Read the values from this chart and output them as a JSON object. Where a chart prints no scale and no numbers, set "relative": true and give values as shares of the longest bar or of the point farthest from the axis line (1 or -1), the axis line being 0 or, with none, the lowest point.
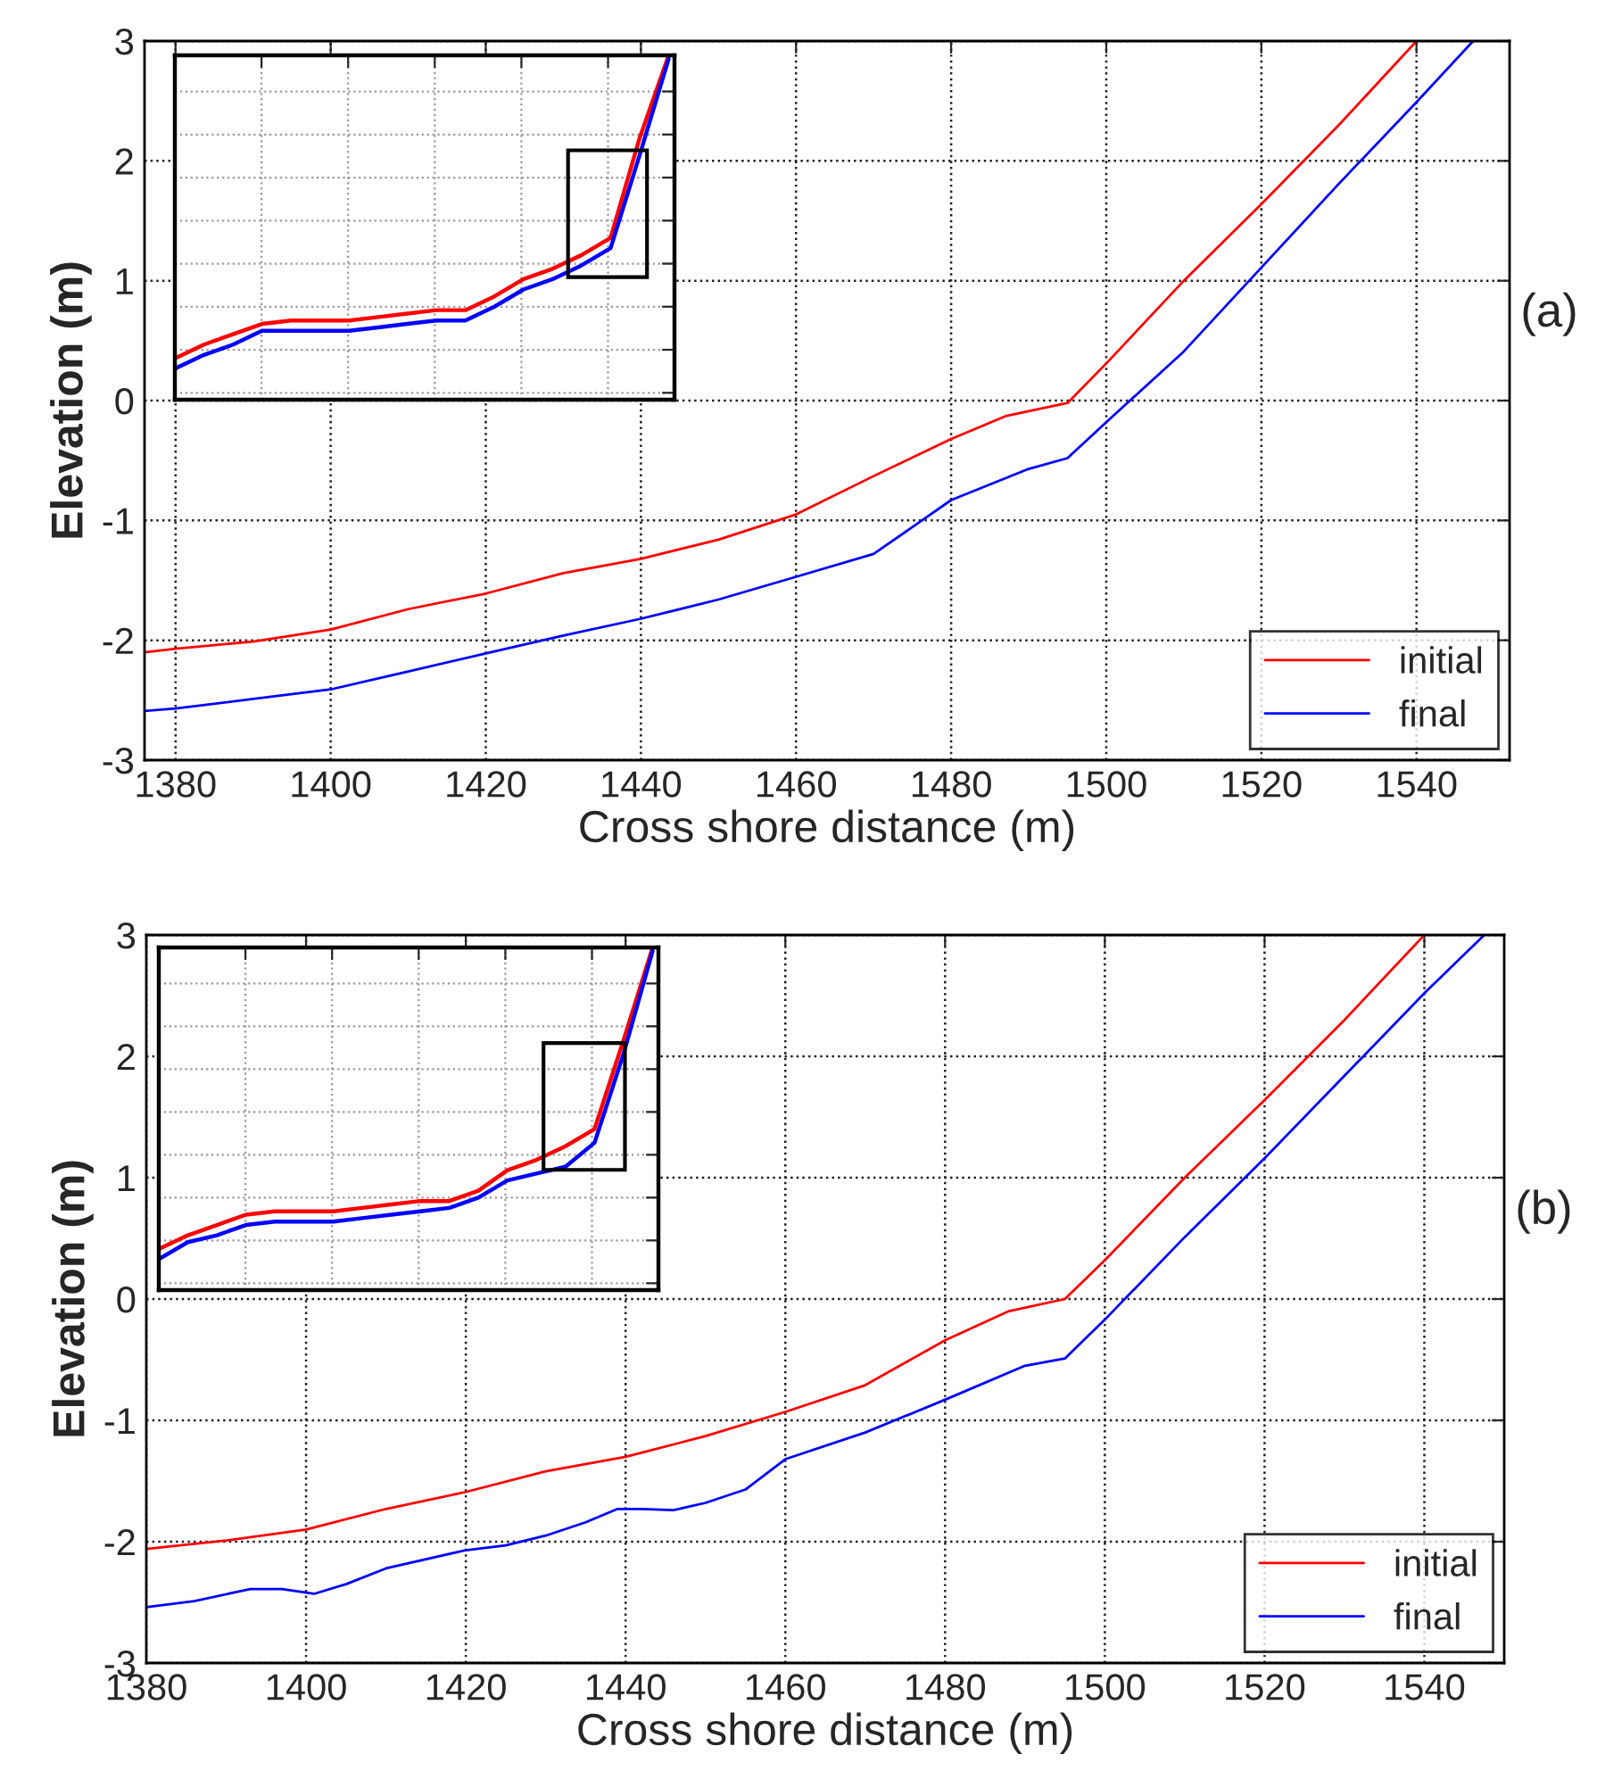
{
  "chart_data": [
    {
      "type": "line",
      "xlabel": "Cross shore distance (m)",
      "ylabel": "Elevation (m)",
      "annotations": [
        "(a)"
      ],
      "xlim": [
        1376,
        1552
      ],
      "xticks": [
        1380,
        1400,
        1420,
        1440,
        1460,
        1480,
        1500,
        1520,
        1540
      ],
      "ylim": [
        -3,
        3
      ],
      "yticks": [
        -3,
        -2,
        -1,
        0,
        1,
        2,
        3
      ],
      "grid": true,
      "legend": "bottom right",
      "series": [
        {
          "name": "initial",
          "color": "#ff0000",
          "x": [
            1376,
            1380,
            1390,
            1400,
            1410,
            1420,
            1430,
            1440,
            1450,
            1460,
            1470,
            1480,
            1487,
            1495,
            1500,
            1510,
            1520,
            1530,
            1540
          ],
          "values": [
            -2.1,
            -2.07,
            -2.01,
            -1.91,
            -1.74,
            -1.61,
            -1.44,
            -1.32,
            -1.16,
            -0.95,
            -0.63,
            -0.32,
            -0.13,
            -0.02,
            0.31,
            1.0,
            1.64,
            2.3,
            3.0
          ]
        },
        {
          "name": "final",
          "color": "#0000ff",
          "x": [
            1376,
            1380,
            1390,
            1400,
            1410,
            1420,
            1430,
            1440,
            1450,
            1460,
            1470,
            1480,
            1490,
            1495,
            1500,
            1510,
            1520,
            1530,
            1540,
            1547.3
          ],
          "values": [
            -2.59,
            -2.57,
            -2.49,
            -2.41,
            -2.26,
            -2.11,
            -1.96,
            -1.82,
            -1.66,
            -1.47,
            -1.28,
            -0.83,
            -0.57,
            -0.48,
            -0.18,
            0.41,
            1.11,
            1.81,
            2.49,
            3.0
          ]
        }
      ]
    },
    {
      "type": "line",
      "relative": true,
      "tick_labels": false,
      "grid": true,
      "categories": [
        null,
        null,
        null,
        null,
        null,
        null,
        null,
        null,
        null,
        null,
        null,
        null,
        null,
        null,
        null,
        null,
        null,
        null
      ],
      "series": [
        {
          "color": "#ff0000",
          "values": [
            0.12,
            0.16,
            0.19,
            0.22,
            0.23,
            0.23,
            0.23,
            0.24,
            0.25,
            0.26,
            0.26,
            0.3,
            0.35,
            0.38,
            0.42,
            0.47,
            0.76,
            1.0
          ]
        },
        {
          "color": "#0000ff",
          "values": [
            0.09,
            0.13,
            0.16,
            0.2,
            0.2,
            0.2,
            0.2,
            0.21,
            0.22,
            0.23,
            0.23,
            0.27,
            0.32,
            0.35,
            0.39,
            0.44,
            0.71,
            0.99
          ]
        }
      ]
    },
    {
      "type": "line",
      "xlabel": "Cross shore distance (m)",
      "ylabel": "Elevation (m)",
      "annotations": [
        "(b)"
      ],
      "xlim": [
        1380,
        1550
      ],
      "xticks": [
        1380,
        1400,
        1420,
        1440,
        1460,
        1480,
        1500,
        1520,
        1540
      ],
      "ylim": [
        -3,
        3
      ],
      "yticks": [
        -3,
        -2,
        -1,
        0,
        1,
        2,
        3
      ],
      "grid": true,
      "legend": "bottom right",
      "series": [
        {
          "name": "initial",
          "color": "#ff0000",
          "x": [
            1380,
            1390,
            1400,
            1410,
            1420,
            1430,
            1440,
            1450,
            1460,
            1470,
            1480,
            1488,
            1495,
            1500,
            1510,
            1520,
            1530,
            1540
          ],
          "values": [
            -2.06,
            -1.99,
            -1.9,
            -1.73,
            -1.59,
            -1.42,
            -1.3,
            -1.13,
            -0.93,
            -0.71,
            -0.34,
            -0.1,
            0.0,
            0.32,
            1.0,
            1.64,
            2.3,
            3.0
          ]
        },
        {
          "name": "final",
          "color": "#0000ff",
          "x": [
            1380,
            1386,
            1393,
            1397,
            1401,
            1405,
            1410,
            1420,
            1425,
            1430,
            1435,
            1439,
            1442,
            1446,
            1450,
            1455,
            1460,
            1470,
            1480,
            1490,
            1495,
            1500,
            1510,
            1520,
            1530,
            1540,
            1547.5
          ],
          "values": [
            -2.54,
            -2.49,
            -2.39,
            -2.39,
            -2.43,
            -2.35,
            -2.22,
            -2.07,
            -2.03,
            -1.95,
            -1.84,
            -1.73,
            -1.73,
            -1.74,
            -1.68,
            -1.57,
            -1.32,
            -1.1,
            -0.83,
            -0.55,
            -0.49,
            -0.17,
            0.51,
            1.16,
            1.84,
            2.52,
            3.0
          ]
        }
      ]
    },
    {
      "type": "line",
      "relative": true,
      "tick_labels": false,
      "grid": true,
      "categories": [
        null,
        null,
        null,
        null,
        null,
        null,
        null,
        null,
        null,
        null,
        null,
        null,
        null,
        null,
        null,
        null,
        null,
        null
      ],
      "series": [
        {
          "color": "#ff0000",
          "values": [
            0.12,
            0.16,
            0.19,
            0.22,
            0.23,
            0.23,
            0.23,
            0.24,
            0.25,
            0.26,
            0.26,
            0.29,
            0.35,
            0.38,
            0.42,
            0.47,
            0.73,
            1.0
          ]
        },
        {
          "color": "#0000ff",
          "values": [
            0.09,
            0.14,
            0.16,
            0.19,
            0.2,
            0.2,
            0.2,
            0.21,
            0.22,
            0.23,
            0.24,
            0.27,
            0.32,
            0.34,
            0.36,
            0.43,
            0.69,
            0.99
          ]
        }
      ]
    }
  ]
}
